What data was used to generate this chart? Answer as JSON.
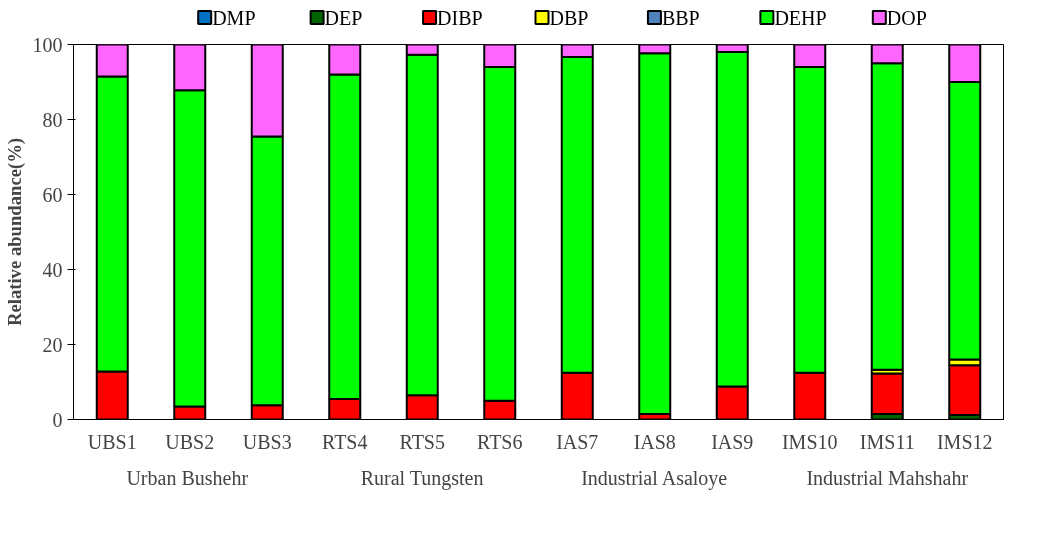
{
  "chart_data": {
    "type": "bar",
    "stacked": true,
    "ylabel": "Relative abundance(%)",
    "categories": [
      "UBS1",
      "UBS2",
      "UBS3",
      "RTS4",
      "RTS5",
      "RTS6",
      "IAS7",
      "IAS8",
      "IAS9",
      "IMS10",
      "IMS11",
      "IMS12"
    ],
    "series": [
      {
        "name": "DMP",
        "color": "#0070c0",
        "values": [
          0,
          0,
          0,
          0,
          0,
          0,
          0,
          0,
          0,
          0,
          0,
          0
        ]
      },
      {
        "name": "DEP",
        "color": "#006400",
        "values": [
          0,
          0,
          0,
          0,
          0,
          0,
          0,
          0,
          0,
          0,
          1.5,
          1.2
        ]
      },
      {
        "name": "DIBP",
        "color": "#ff0000",
        "values": [
          12.8,
          3.5,
          3.8,
          5.5,
          6.5,
          5.0,
          12.5,
          1.5,
          8.8,
          12.5,
          10.8,
          13.3
        ]
      },
      {
        "name": "DBP",
        "color": "#ffff00",
        "values": [
          0,
          0,
          0,
          0,
          0,
          0,
          0,
          0,
          0,
          0,
          1.0,
          1.5
        ]
      },
      {
        "name": "BBP",
        "color": "#4f81bd",
        "values": [
          0,
          0,
          0,
          0,
          0,
          0,
          0,
          0,
          0,
          0,
          0,
          0
        ]
      },
      {
        "name": "DEHP",
        "color": "#00ff00",
        "values": [
          78.7,
          84.3,
          71.7,
          86.5,
          90.8,
          89.0,
          84.2,
          96.2,
          89.2,
          81.5,
          81.7,
          74.0
        ]
      },
      {
        "name": "DOP",
        "color": "#ff66ff",
        "values": [
          8.5,
          12.2,
          24.5,
          8.0,
          2.7,
          6.0,
          3.3,
          2.3,
          2.0,
          6.0,
          5.0,
          10.0
        ]
      }
    ],
    "annotations": [
      "Urban  Bushehr",
      "Rural Tungsten",
      "Industrial Asaloye",
      "Industrial Mahshahr"
    ],
    "ylim": [
      0,
      100
    ],
    "yticks": [
      0,
      20,
      40,
      60,
      80,
      100
    ],
    "grid": false,
    "legend": "top"
  }
}
